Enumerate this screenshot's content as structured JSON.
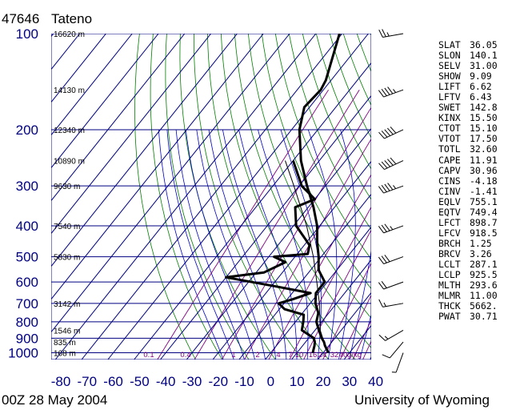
{
  "header": {
    "station_id": "47646",
    "station_name": "Tateno",
    "time": "00Z 28 May 2004",
    "source": "University of Wyoming"
  },
  "colors": {
    "grid": "#000080",
    "pressure_label": "#000080",
    "dry_adiabat": "#008000",
    "moist_adiabat": "#0000cc",
    "mixing_ratio": "#800080",
    "profile": "#000000"
  },
  "chart_data": {
    "type": "skew-t",
    "title": "47646 Tateno",
    "xlabel": "",
    "ylabel": "",
    "x_ticks": [
      -80,
      -70,
      -60,
      -50,
      -40,
      -30,
      -20,
      -10,
      0,
      10,
      20,
      30,
      40
    ],
    "x_tick_labels": [
      "-80",
      "-70",
      "-60",
      "-50",
      "-40",
      "-30",
      "-20",
      "-10",
      "0",
      "10",
      "20",
      "30",
      "40"
    ],
    "pressure_levels": [
      100,
      200,
      300,
      400,
      500,
      600,
      700,
      800,
      900,
      1000
    ],
    "pressure_labels": [
      "100",
      "200",
      "300",
      "400",
      "500",
      "600",
      "700",
      "800",
      "900",
      "1000"
    ],
    "height_labels": [
      {
        "p": 100,
        "text": "16620 m"
      },
      {
        "p": 150,
        "text": "14130 m"
      },
      {
        "p": 200,
        "text": "12340 m"
      },
      {
        "p": 250,
        "text": "10890 m"
      },
      {
        "p": 300,
        "text": "9630 m"
      },
      {
        "p": 400,
        "text": "7540 m"
      },
      {
        "p": 500,
        "text": "5830 m"
      },
      {
        "p": 700,
        "text": "3142 m"
      },
      {
        "p": 850,
        "text": "1546 m"
      },
      {
        "p": 925,
        "text": "835 m"
      },
      {
        "p": 1000,
        "text": "168 m"
      }
    ],
    "mixing_ratio_labels": [
      "0.1",
      "0.4",
      "1",
      "2",
      "4",
      "7",
      "10",
      "16",
      "24",
      "32",
      "40",
      "g/kg"
    ],
    "mixing_ratio_values": [
      0.1,
      0.4,
      1,
      2,
      4,
      7,
      10,
      16,
      24,
      32,
      40
    ],
    "temperature": [
      {
        "p": 1000,
        "t": 22.0
      },
      {
        "p": 950,
        "t": 18.5
      },
      {
        "p": 925,
        "t": 17.0
      },
      {
        "p": 900,
        "t": 15.0
      },
      {
        "p": 850,
        "t": 11.5
      },
      {
        "p": 800,
        "t": 8.0
      },
      {
        "p": 750,
        "t": 6.0
      },
      {
        "p": 700,
        "t": 2.0
      },
      {
        "p": 650,
        "t": -1.0
      },
      {
        "p": 600,
        "t": -1.0
      },
      {
        "p": 550,
        "t": -7.0
      },
      {
        "p": 500,
        "t": -11.0
      },
      {
        "p": 450,
        "t": -16.0
      },
      {
        "p": 400,
        "t": -21.0
      },
      {
        "p": 350,
        "t": -28.0
      },
      {
        "p": 300,
        "t": -37.0
      },
      {
        "p": 250,
        "t": -47.0
      },
      {
        "p": 200,
        "t": -57.0
      },
      {
        "p": 170,
        "t": -62.0
      },
      {
        "p": 150,
        "t": -61.0
      },
      {
        "p": 140,
        "t": -62.0
      },
      {
        "p": 100,
        "t": -71.0
      }
    ],
    "dewpoint": [
      {
        "p": 1000,
        "t": 16.0
      },
      {
        "p": 950,
        "t": 14.5
      },
      {
        "p": 925,
        "t": 13.5
      },
      {
        "p": 900,
        "t": 12.0
      },
      {
        "p": 850,
        "t": 5.0
      },
      {
        "p": 800,
        "t": 3.0
      },
      {
        "p": 760,
        "t": 1.0
      },
      {
        "p": 730,
        "t": -8.0
      },
      {
        "p": 700,
        "t": -12.0
      },
      {
        "p": 680,
        "t": -8.0
      },
      {
        "p": 650,
        "t": -3.0
      },
      {
        "p": 620,
        "t": -18.0
      },
      {
        "p": 580,
        "t": -40.0
      },
      {
        "p": 560,
        "t": -27.0
      },
      {
        "p": 520,
        "t": -22.0
      },
      {
        "p": 500,
        "t": -28.0
      },
      {
        "p": 490,
        "t": -16.0
      },
      {
        "p": 460,
        "t": -18.0
      },
      {
        "p": 400,
        "t": -29.0
      },
      {
        "p": 350,
        "t": -35.0
      },
      {
        "p": 330,
        "t": -30.0
      },
      {
        "p": 300,
        "t": -39.0
      },
      {
        "p": 250,
        "t": -50.0
      }
    ],
    "parcel_path": [
      {
        "p": 925,
        "t": 17.0
      },
      {
        "p": 850,
        "t": 12.0
      },
      {
        "p": 700,
        "t": 3.5
      },
      {
        "p": 600,
        "t": -4.0
      },
      {
        "p": 500,
        "t": -13.0
      },
      {
        "p": 400,
        "t": -25.0
      },
      {
        "p": 300,
        "t": -42.0
      },
      {
        "p": 250,
        "t": -53.0
      }
    ],
    "wind_barbs": [
      {
        "p": 1000,
        "dir": 200,
        "kt": 5
      },
      {
        "p": 925,
        "dir": 220,
        "kt": 10
      },
      {
        "p": 850,
        "dir": 240,
        "kt": 15
      },
      {
        "p": 700,
        "dir": 260,
        "kt": 15
      },
      {
        "p": 600,
        "dir": 250,
        "kt": 20
      },
      {
        "p": 500,
        "dir": 250,
        "kt": 30
      },
      {
        "p": 400,
        "dir": 250,
        "kt": 35
      },
      {
        "p": 300,
        "dir": 250,
        "kt": 45
      },
      {
        "p": 250,
        "dir": 245,
        "kt": 50
      },
      {
        "p": 200,
        "dir": 245,
        "kt": 50
      },
      {
        "p": 150,
        "dir": 250,
        "kt": 45
      },
      {
        "p": 100,
        "dir": 260,
        "kt": 25
      }
    ],
    "indices": [
      {
        "key": "SLAT",
        "value": "36.05"
      },
      {
        "key": "SLON",
        "value": "140.1"
      },
      {
        "key": "SELV",
        "value": "31.00"
      },
      {
        "key": "SHOW",
        "value": "9.09"
      },
      {
        "key": "LIFT",
        "value": "6.62"
      },
      {
        "key": "LFTV",
        "value": "6.43"
      },
      {
        "key": "SWET",
        "value": "142.8"
      },
      {
        "key": "KINX",
        "value": "15.50"
      },
      {
        "key": "CTOT",
        "value": "15.10"
      },
      {
        "key": "VTOT",
        "value": "17.50"
      },
      {
        "key": "TOTL",
        "value": "32.60"
      },
      {
        "key": "CAPE",
        "value": "11.91"
      },
      {
        "key": "CAPV",
        "value": "30.96"
      },
      {
        "key": "CINS",
        "value": "-4.18"
      },
      {
        "key": "CINV",
        "value": "-1.41"
      },
      {
        "key": "EQLV",
        "value": "755.1"
      },
      {
        "key": "EQTV",
        "value": "749.4"
      },
      {
        "key": "LFCT",
        "value": "898.7"
      },
      {
        "key": "LFCV",
        "value": "918.5"
      },
      {
        "key": "BRCH",
        "value": "1.25"
      },
      {
        "key": "BRCV",
        "value": "3.26"
      },
      {
        "key": "LCLT",
        "value": "287.1"
      },
      {
        "key": "LCLP",
        "value": "925.5"
      },
      {
        "key": "MLTH",
        "value": "293.6"
      },
      {
        "key": "MLMR",
        "value": "11.00"
      },
      {
        "key": "THCK",
        "value": "5662."
      },
      {
        "key": "PWAT",
        "value": "30.71"
      }
    ]
  }
}
